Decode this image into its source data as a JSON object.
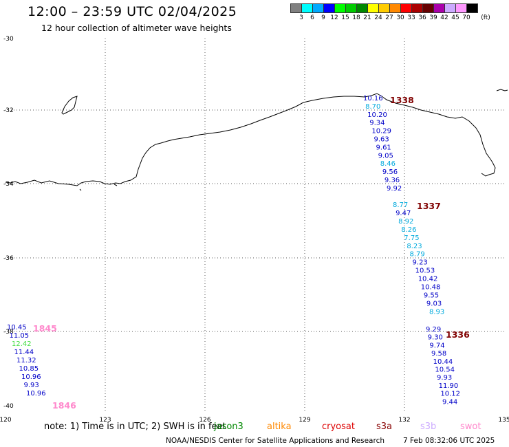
{
  "header": {
    "title": "12:00 – 23:59 UTC 02/04/2025",
    "subtitle": "12 hour collection of altimeter wave heights"
  },
  "colorbar": {
    "unit": "(ft)",
    "colors": [
      "#808080",
      "#00ffff",
      "#00aaff",
      "#0000ff",
      "#00ff00",
      "#00cc00",
      "#008800",
      "#ffff00",
      "#ffcc00",
      "#ff8800",
      "#ff0000",
      "#aa0000",
      "#660000",
      "#aa00aa",
      "#ccaaff",
      "#ff99ff",
      "#000000"
    ],
    "ticks": [
      "3",
      "6",
      "9",
      "12",
      "15",
      "18",
      "21",
      "24",
      "27",
      "30",
      "33",
      "36",
      "39",
      "42",
      "45",
      "70"
    ]
  },
  "axes": {
    "lon_labels": [
      "120",
      "123",
      "126",
      "129",
      "132",
      "135"
    ],
    "lat_labels": [
      "-30",
      "-32",
      "-34",
      "-36",
      "-38",
      "-40"
    ]
  },
  "tracks": [
    {
      "pass": "1338",
      "pass_color": "#800000",
      "points": [
        {
          "v": "10.16",
          "c": "#0000c8"
        },
        {
          "v": "8.70",
          "c": "#00aadd"
        },
        {
          "v": "10.20",
          "c": "#0000c8"
        },
        {
          "v": "9.34",
          "c": "#0000c8"
        },
        {
          "v": "10.29",
          "c": "#0000c8"
        },
        {
          "v": "9.63",
          "c": "#0000c8"
        },
        {
          "v": "9.61",
          "c": "#0000c8"
        },
        {
          "v": "9.05",
          "c": "#0000c8"
        },
        {
          "v": "8.46",
          "c": "#00aadd"
        },
        {
          "v": "9.56",
          "c": "#0000c8"
        },
        {
          "v": "9.36",
          "c": "#0000c8"
        },
        {
          "v": "9.92",
          "c": "#0000c8"
        }
      ]
    },
    {
      "pass": "1337",
      "pass_color": "#800000",
      "points": [
        {
          "v": "8.77",
          "c": "#00aadd"
        },
        {
          "v": "9.47",
          "c": "#0000c8"
        },
        {
          "v": "8.92",
          "c": "#00aadd"
        },
        {
          "v": "8.26",
          "c": "#00aadd"
        },
        {
          "v": "7.75",
          "c": "#00aadd"
        },
        {
          "v": "8.23",
          "c": "#00aadd"
        },
        {
          "v": "8.79",
          "c": "#00aadd"
        },
        {
          "v": "9.23",
          "c": "#0000c8"
        },
        {
          "v": "10.53",
          "c": "#0000c8"
        },
        {
          "v": "10.42",
          "c": "#0000c8"
        },
        {
          "v": "10.48",
          "c": "#0000c8"
        },
        {
          "v": "9.55",
          "c": "#0000c8"
        },
        {
          "v": "9.03",
          "c": "#0000c8"
        },
        {
          "v": "8.93",
          "c": "#00aadd"
        }
      ]
    },
    {
      "pass": "1336",
      "pass_color": "#800000",
      "points": [
        {
          "v": "9.29",
          "c": "#0000c8"
        },
        {
          "v": "9.30",
          "c": "#0000c8"
        },
        {
          "v": "9.74",
          "c": "#0000c8"
        },
        {
          "v": "9.58",
          "c": "#0000c8"
        },
        {
          "v": "10.44",
          "c": "#0000c8"
        },
        {
          "v": "10.54",
          "c": "#0000c8"
        },
        {
          "v": "9.93",
          "c": "#0000c8"
        },
        {
          "v": "11.90",
          "c": "#0000c8"
        },
        {
          "v": "10.12",
          "c": "#0000c8"
        },
        {
          "v": "9.44",
          "c": "#0000c8"
        }
      ]
    },
    {
      "pass": "1845",
      "pass_color": "#ff88cc",
      "points": [
        {
          "v": "10.45",
          "c": "#0000c8"
        },
        {
          "v": "11.05",
          "c": "#0000c8"
        },
        {
          "v": "12.42",
          "c": "#44dd44"
        },
        {
          "v": "11.44",
          "c": "#0000c8"
        },
        {
          "v": "11.32",
          "c": "#0000c8"
        },
        {
          "v": "10.85",
          "c": "#0000c8"
        },
        {
          "v": "10.96",
          "c": "#0000c8"
        },
        {
          "v": "9.93",
          "c": "#0000c8"
        },
        {
          "v": "10.96",
          "c": "#0000c8"
        }
      ]
    },
    {
      "pass": "1846",
      "pass_color": "#ff88cc",
      "points": []
    }
  ],
  "footer": {
    "note": "note: 1) Time is in UTC; 2) SWH is in feet",
    "satellites": [
      {
        "name": "jason3",
        "color": "#008800"
      },
      {
        "name": "altika",
        "color": "#ff8800"
      },
      {
        "name": "cryosat",
        "color": "#dd0000"
      },
      {
        "name": "s3a",
        "color": "#880000"
      },
      {
        "name": "s3b",
        "color": "#ccaaff"
      },
      {
        "name": "swot",
        "color": "#ff88cc"
      }
    ],
    "credit": "NOAA/NESDIS Center for Satellite Applications and Research",
    "timestamp": "7 Feb 08:32:06 UTC 2025"
  }
}
